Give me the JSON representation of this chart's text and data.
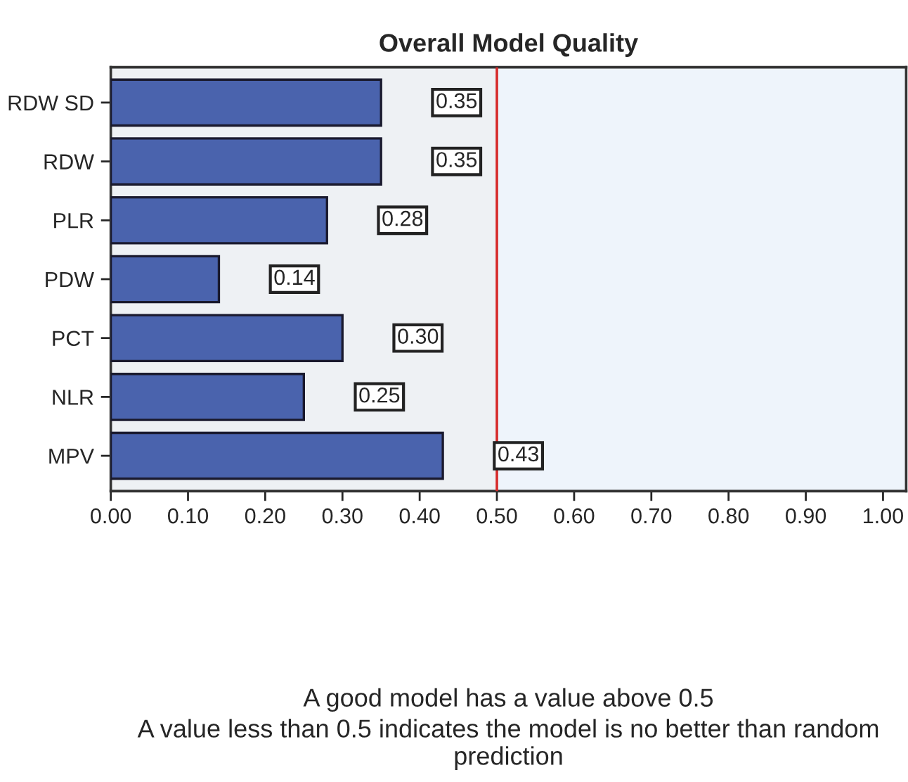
{
  "chart_data": {
    "type": "bar",
    "orientation": "horizontal",
    "title": "Overall Model Quality",
    "categories": [
      "RDW SD",
      "RDW",
      "PLR",
      "PDW",
      "PCT",
      "NLR",
      "MPV"
    ],
    "values": [
      0.35,
      0.35,
      0.28,
      0.14,
      0.3,
      0.25,
      0.43
    ],
    "value_labels": [
      "0.35",
      "0.35",
      "0.28",
      "0.14",
      "0.30",
      "0.25",
      "0.43"
    ],
    "color": "#4a63ad",
    "xlim": [
      0,
      1.03
    ],
    "xticks": [
      {
        "value": 0,
        "label": "0.00"
      },
      {
        "value": 0.1,
        "label": "0.10"
      },
      {
        "value": 0.2,
        "label": "0.20"
      },
      {
        "value": 0.3,
        "label": "0.30"
      },
      {
        "value": 0.4,
        "label": "0.40"
      },
      {
        "value": 0.5,
        "label": "0.50"
      },
      {
        "value": 0.6,
        "label": "0.60"
      },
      {
        "value": 0.7,
        "label": "0.70"
      },
      {
        "value": 0.8,
        "label": "0.80"
      },
      {
        "value": 0.9,
        "label": "0.90"
      },
      {
        "value": 1.0,
        "label": "1.00"
      }
    ],
    "ref_lines": [
      {
        "axis": "x",
        "value": 0.5,
        "color": "#d62a2a"
      }
    ],
    "bands": [
      {
        "axis": "x",
        "from": 0.5,
        "to": 1.03,
        "color": "#eef4fb"
      }
    ],
    "grid": false,
    "legend": false,
    "annotations": [
      "A good model has a value above 0.5",
      "A value less than 0.5 indicates the model is no better than random prediction"
    ]
  }
}
